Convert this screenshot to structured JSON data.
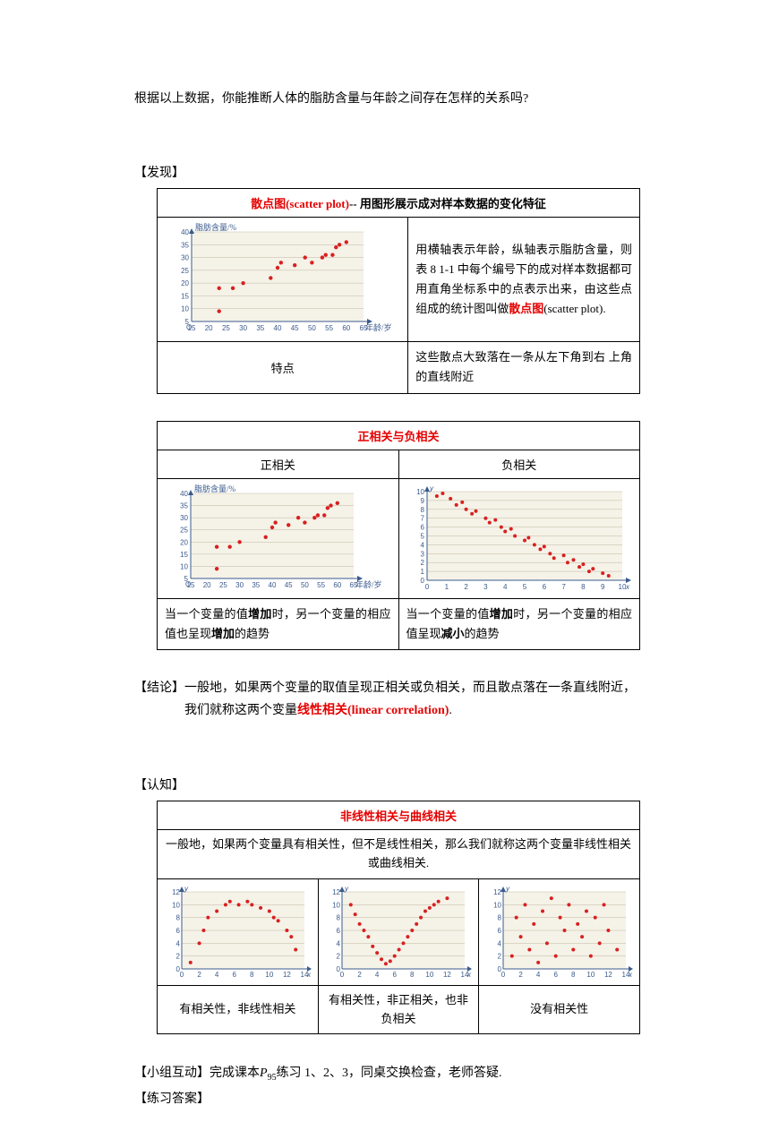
{
  "intro": "根据以上数据，你能推断人体的脂肪含量与年龄之间存在怎样的关系吗?",
  "labels": {
    "discovery": "【发现】",
    "conclusion": "【结论】",
    "cognition": "【认知】",
    "group": "【小组互动】",
    "answers": "【练习答案】"
  },
  "table1": {
    "title_red": "散点图(scatter plot)",
    "title_rest": "-- 用图形展示成对样本数据的变化特征",
    "desc_part1": "用横轴表示年龄，纵轴表示脂肪含量，则表 8 1-1 中每个编号下的成对样本数据都可用直角坐标系中的点表示出来，由这些点组成的统计图叫做",
    "desc_red": "散点图",
    "desc_part2": "(scatter plot).",
    "feature_label": "特点",
    "feature_text": "这些散点大致落在一条从左下角到右 上角的直线附近"
  },
  "scatter1": {
    "y_label": "脂肪含量/%",
    "x_label": "年龄/岁",
    "y_ticks": [
      5,
      10,
      15,
      20,
      25,
      30,
      35,
      40
    ],
    "x_ticks": [
      15,
      20,
      25,
      30,
      35,
      40,
      45,
      50,
      55,
      60,
      65
    ],
    "points": [
      [
        23,
        9
      ],
      [
        23,
        18
      ],
      [
        27,
        18
      ],
      [
        30,
        20
      ],
      [
        38,
        22
      ],
      [
        40,
        26
      ],
      [
        41,
        28
      ],
      [
        45,
        27
      ],
      [
        48,
        30
      ],
      [
        50,
        28
      ],
      [
        53,
        30
      ],
      [
        54,
        31
      ],
      [
        56,
        31
      ],
      [
        57,
        34
      ],
      [
        58,
        35
      ],
      [
        60,
        36
      ]
    ],
    "bg_color": "#f5f2e8",
    "axis_color": "#3a5a8c",
    "grid_color": "#c0b8a0",
    "point_color": "#d82020"
  },
  "table2": {
    "title": "正相关与负相关",
    "col1": "正相关",
    "col2": "负相关",
    "desc1_p1": "当一个变量的值",
    "desc1_p2": "增加",
    "desc1_p3": "时，另一个变量的相应值也呈现",
    "desc1_p4": "增加",
    "desc1_p5": "的趋势",
    "desc2_p1": "当一个变量的值",
    "desc2_p2": "增加",
    "desc2_p3": "时，另一个变量的相应值呈现",
    "desc2_p4": "减小",
    "desc2_p5": "的趋势"
  },
  "scatter_neg": {
    "y_ticks": [
      0,
      1,
      2,
      3,
      4,
      5,
      6,
      7,
      8,
      9,
      10
    ],
    "x_ticks": [
      0,
      1,
      2,
      3,
      4,
      5,
      6,
      7,
      8,
      9,
      10
    ],
    "points": [
      [
        0.5,
        9.5
      ],
      [
        0.8,
        9.8
      ],
      [
        1.2,
        9.2
      ],
      [
        1.5,
        8.5
      ],
      [
        1.8,
        8.8
      ],
      [
        2.0,
        8.0
      ],
      [
        2.3,
        7.5
      ],
      [
        2.5,
        7.8
      ],
      [
        3.0,
        7.0
      ],
      [
        3.2,
        6.5
      ],
      [
        3.5,
        6.8
      ],
      [
        3.8,
        6.0
      ],
      [
        4.0,
        5.5
      ],
      [
        4.3,
        5.8
      ],
      [
        4.5,
        5.0
      ],
      [
        5.0,
        4.5
      ],
      [
        5.2,
        4.8
      ],
      [
        5.5,
        4.0
      ],
      [
        5.8,
        3.5
      ],
      [
        6.0,
        3.8
      ],
      [
        6.3,
        3.0
      ],
      [
        6.5,
        2.5
      ],
      [
        7.0,
        2.8
      ],
      [
        7.2,
        2.0
      ],
      [
        7.5,
        2.3
      ],
      [
        7.8,
        1.5
      ],
      [
        8.0,
        1.8
      ],
      [
        8.3,
        1.0
      ],
      [
        8.5,
        1.3
      ],
      [
        9.0,
        0.8
      ],
      [
        9.3,
        0.5
      ]
    ]
  },
  "conclusion_text": {
    "p1": "一般地，如果两个变量的取值呈现正相关或负相关，而且散点落在一条直线附近，",
    "p2a": "我们就称这两个变量",
    "p2_red": "线性相关(linear correlation)",
    "p2b": "."
  },
  "table3": {
    "title": "非线性相关与曲线相关",
    "subtitle": "一般地，如果两个变量具有相关性，但不是线性相关，那么我们就称这两个变量非线性相关或曲线相关.",
    "cap1": "有相关性，非线性相关",
    "cap2": "有相关性，非正相关，也非负相关",
    "cap3": "没有相关性"
  },
  "small_charts": {
    "y_ticks": [
      0,
      2,
      4,
      6,
      8,
      10,
      12
    ],
    "x_ticks": [
      0,
      2,
      4,
      6,
      8,
      10,
      12,
      14
    ],
    "chart1_points": [
      [
        1,
        1
      ],
      [
        2,
        4
      ],
      [
        2.5,
        6
      ],
      [
        3,
        8
      ],
      [
        4,
        9
      ],
      [
        5,
        10
      ],
      [
        5.5,
        10.5
      ],
      [
        6.5,
        10
      ],
      [
        7.5,
        10.5
      ],
      [
        8,
        10
      ],
      [
        9,
        9.5
      ],
      [
        10,
        9
      ],
      [
        10.5,
        8
      ],
      [
        11,
        7.5
      ],
      [
        12,
        6
      ],
      [
        12.5,
        5
      ],
      [
        13,
        3
      ]
    ],
    "chart2_points": [
      [
        1,
        10
      ],
      [
        1.5,
        8.5
      ],
      [
        2,
        7
      ],
      [
        2.5,
        6
      ],
      [
        3,
        5
      ],
      [
        3.5,
        3.5
      ],
      [
        4,
        2.5
      ],
      [
        4.5,
        1.5
      ],
      [
        5,
        0.8
      ],
      [
        5.5,
        1.2
      ],
      [
        6,
        2
      ],
      [
        6.5,
        3
      ],
      [
        7,
        4
      ],
      [
        7.5,
        5
      ],
      [
        8,
        6
      ],
      [
        8.5,
        7
      ],
      [
        9,
        8
      ],
      [
        9.5,
        9
      ],
      [
        10,
        9.5
      ],
      [
        10.5,
        10
      ],
      [
        11,
        10.5
      ],
      [
        12,
        11
      ]
    ],
    "chart3_points": [
      [
        1,
        2
      ],
      [
        1.5,
        8
      ],
      [
        2,
        5
      ],
      [
        2.5,
        10
      ],
      [
        3,
        3
      ],
      [
        3.5,
        7
      ],
      [
        4,
        1
      ],
      [
        4.5,
        9
      ],
      [
        5,
        4
      ],
      [
        5.5,
        11
      ],
      [
        6,
        2
      ],
      [
        6.5,
        8
      ],
      [
        7,
        6
      ],
      [
        7.5,
        10
      ],
      [
        8,
        3
      ],
      [
        8.5,
        7
      ],
      [
        9,
        5
      ],
      [
        9.5,
        9
      ],
      [
        10,
        2
      ],
      [
        10.5,
        8
      ],
      [
        11,
        4
      ],
      [
        11.5,
        10
      ],
      [
        12,
        6
      ],
      [
        13,
        3
      ]
    ]
  },
  "group_text": {
    "p1": "完成课本",
    "p_sub": "P",
    "p_subnum": "95",
    "p2": "练习 1、2、3，同桌交换检查，老师答疑."
  }
}
